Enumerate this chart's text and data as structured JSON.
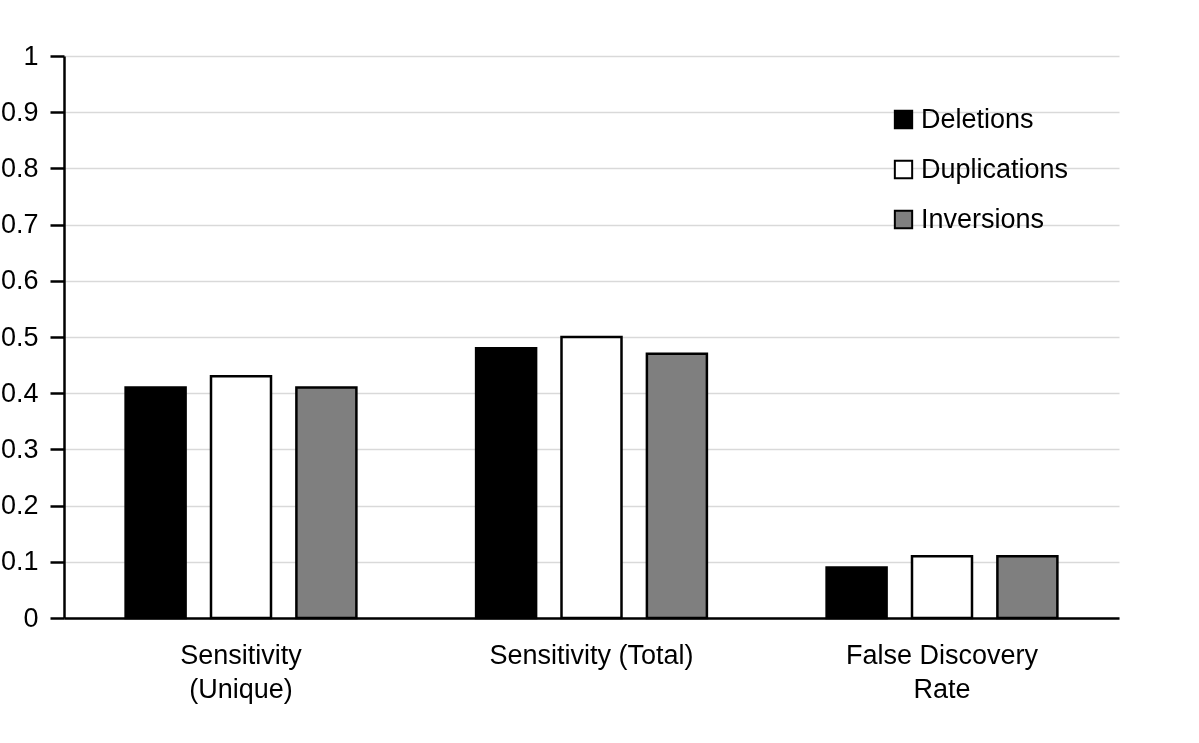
{
  "chart_data": {
    "type": "bar",
    "categories": [
      "Sensitivity (Unique)",
      "Sensitivity (Total)",
      "False Discovery Rate"
    ],
    "series": [
      {
        "name": "Deletions",
        "color": "#000000",
        "values": [
          0.41,
          0.48,
          0.09
        ]
      },
      {
        "name": "Duplications",
        "color": "#ffffff",
        "values": [
          0.43,
          0.5,
          0.11
        ]
      },
      {
        "name": "Inversions",
        "color": "#7f7f7f",
        "values": [
          0.41,
          0.47,
          0.11
        ]
      }
    ],
    "ylim": [
      0,
      1
    ],
    "yticks": [
      0,
      0.1,
      0.2,
      0.3,
      0.4,
      0.5,
      0.6,
      0.7,
      0.8,
      0.9,
      1
    ],
    "grid": "y",
    "legend": "top right"
  }
}
